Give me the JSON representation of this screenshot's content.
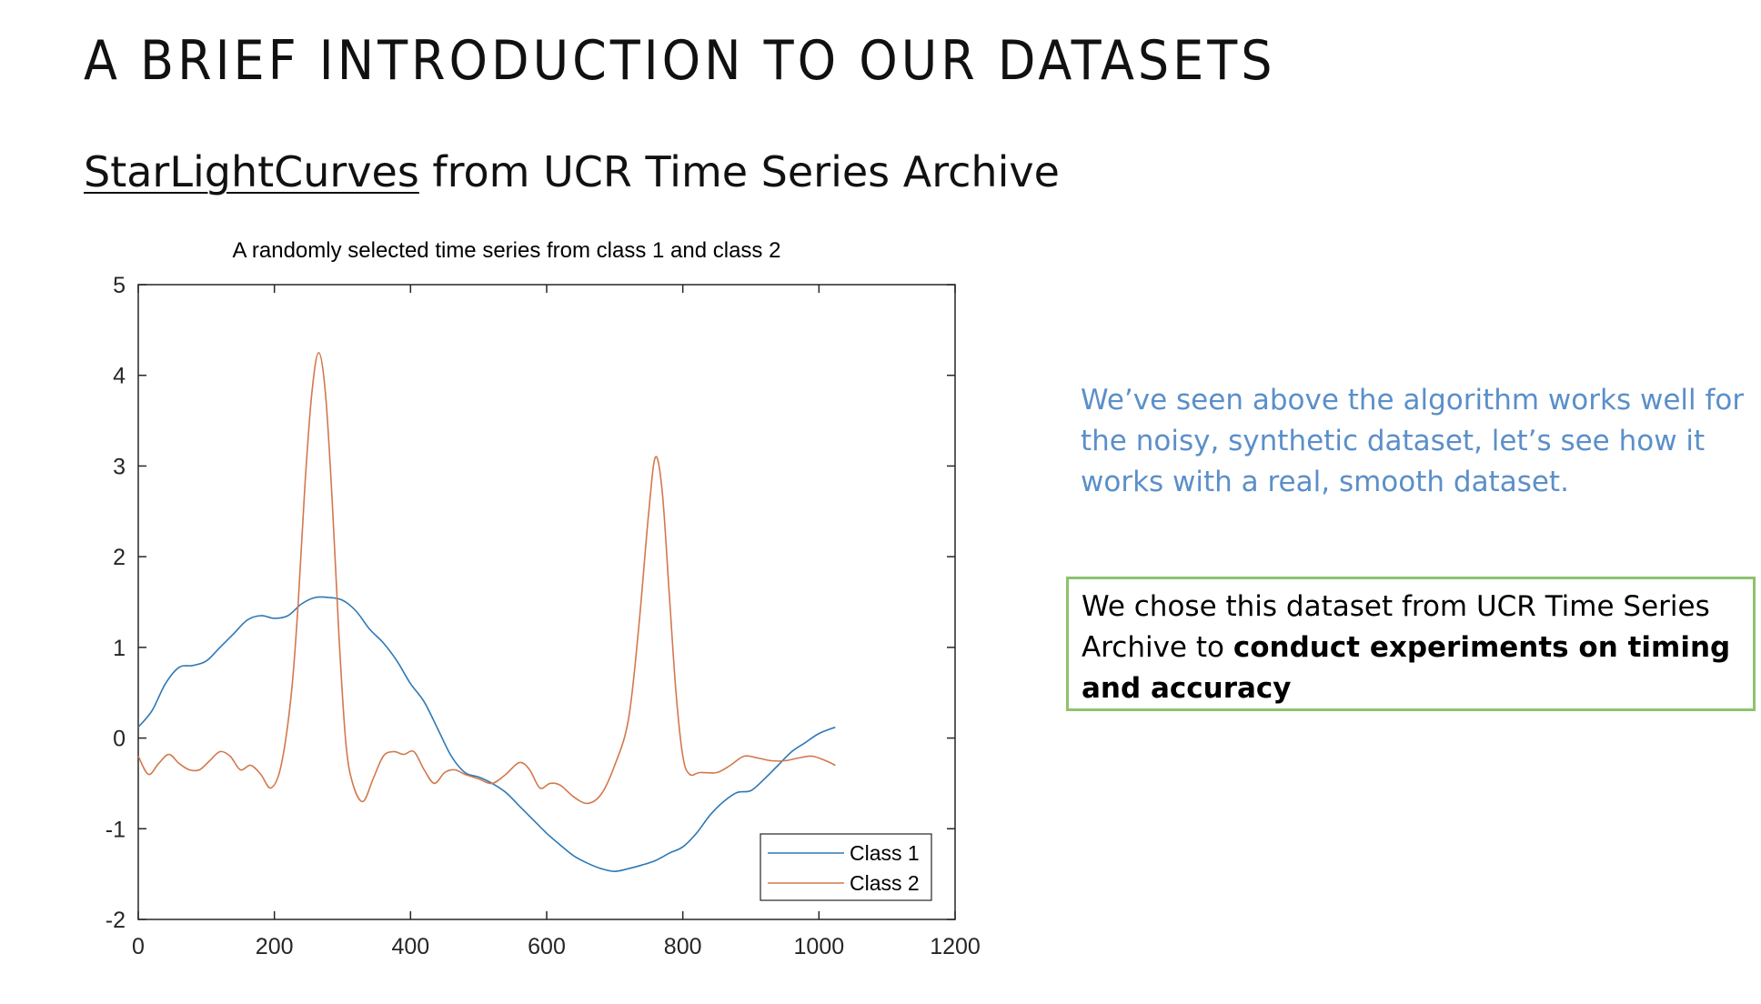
{
  "slide": {
    "title": "A BRIEF INTRODUCTION TO OUR DATASETS",
    "subtitle_dataset": "StarLightCurves",
    "subtitle_rest": " from UCR Time Series Archive"
  },
  "notes": {
    "blue_text": "We’ve seen above the algorithm works well for the noisy, synthetic dataset, let’s see how it works with a real, smooth dataset.",
    "box_text_plain": "We chose this dataset from UCR Time Series Archive to ",
    "box_text_bold": "conduct experiments on timing and accuracy"
  },
  "chart_data": {
    "type": "line",
    "title": "A randomly selected time series from class 1 and class 2",
    "xlabel": "",
    "ylabel": "",
    "xlim": [
      0,
      1200
    ],
    "ylim": [
      -2,
      5
    ],
    "xticks": [
      0,
      200,
      400,
      600,
      800,
      1000,
      1200
    ],
    "yticks": [
      -2,
      -1,
      0,
      1,
      2,
      3,
      4,
      5
    ],
    "grid": false,
    "legend_position": "bottom-right",
    "series": [
      {
        "name": "Class 1",
        "color": "#2e78b5",
        "x": [
          0,
          20,
          40,
          60,
          80,
          100,
          120,
          140,
          160,
          180,
          200,
          220,
          240,
          260,
          280,
          300,
          320,
          340,
          360,
          380,
          400,
          420,
          440,
          460,
          480,
          500,
          520,
          540,
          560,
          580,
          600,
          620,
          640,
          660,
          680,
          700,
          720,
          740,
          760,
          780,
          800,
          820,
          840,
          860,
          880,
          900,
          920,
          940,
          960,
          980,
          1000,
          1024
        ],
        "y": [
          0.12,
          0.3,
          0.6,
          0.78,
          0.8,
          0.85,
          1.0,
          1.15,
          1.3,
          1.35,
          1.32,
          1.35,
          1.48,
          1.55,
          1.55,
          1.52,
          1.4,
          1.2,
          1.05,
          0.85,
          0.6,
          0.4,
          0.1,
          -0.2,
          -0.38,
          -0.43,
          -0.5,
          -0.6,
          -0.75,
          -0.9,
          -1.05,
          -1.18,
          -1.3,
          -1.38,
          -1.44,
          -1.47,
          -1.44,
          -1.4,
          -1.35,
          -1.27,
          -1.2,
          -1.05,
          -0.85,
          -0.7,
          -0.6,
          -0.58,
          -0.45,
          -0.3,
          -0.15,
          -0.05,
          0.05,
          0.12
        ]
      },
      {
        "name": "Class 2",
        "color": "#d2784d",
        "x": [
          0,
          15,
          30,
          45,
          60,
          75,
          90,
          105,
          120,
          135,
          150,
          165,
          180,
          195,
          210,
          225,
          235,
          245,
          255,
          265,
          275,
          285,
          295,
          305,
          315,
          330,
          345,
          360,
          375,
          390,
          405,
          420,
          435,
          450,
          465,
          480,
          500,
          520,
          540,
          560,
          575,
          590,
          605,
          620,
          640,
          660,
          680,
          700,
          720,
          735,
          750,
          760,
          770,
          780,
          790,
          800,
          810,
          825,
          850,
          870,
          890,
          910,
          930,
          950,
          970,
          990,
          1010,
          1024
        ],
        "y": [
          -0.2,
          -0.4,
          -0.28,
          -0.18,
          -0.28,
          -0.35,
          -0.35,
          -0.25,
          -0.15,
          -0.2,
          -0.35,
          -0.3,
          -0.4,
          -0.55,
          -0.3,
          0.5,
          1.5,
          2.8,
          3.8,
          4.25,
          3.8,
          2.6,
          1.1,
          -0.05,
          -0.5,
          -0.7,
          -0.45,
          -0.2,
          -0.15,
          -0.18,
          -0.15,
          -0.35,
          -0.5,
          -0.38,
          -0.35,
          -0.4,
          -0.45,
          -0.5,
          -0.4,
          -0.27,
          -0.35,
          -0.55,
          -0.5,
          -0.52,
          -0.65,
          -0.72,
          -0.62,
          -0.3,
          0.2,
          1.2,
          2.5,
          3.1,
          2.7,
          1.6,
          0.5,
          -0.2,
          -0.4,
          -0.38,
          -0.38,
          -0.3,
          -0.2,
          -0.22,
          -0.25,
          -0.25,
          -0.22,
          -0.2,
          -0.25,
          -0.3
        ]
      }
    ]
  }
}
